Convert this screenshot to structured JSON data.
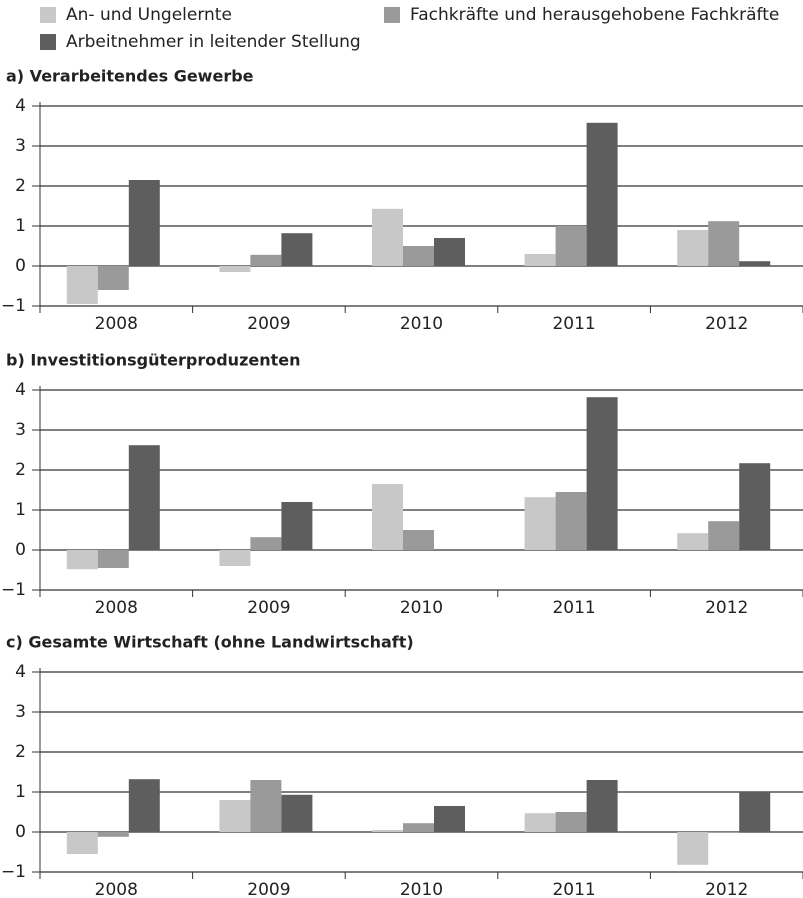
{
  "legend": {
    "series": [
      {
        "name": "An- und Ungelernte",
        "color": "#c8c8c8"
      },
      {
        "name": "Fachkräfte und herausgehobene Fachkräfte",
        "color": "#9a9a9a"
      },
      {
        "name": "Arbeitnehmer in leitender Stellung",
        "color": "#5e5e5e"
      }
    ]
  },
  "chart_data": [
    {
      "type": "bar",
      "title": "a) Verarbeitendes Gewerbe",
      "categories": [
        "2008",
        "2009",
        "2010",
        "2011",
        "2012"
      ],
      "series": [
        {
          "values": [
            -0.95,
            -0.15,
            1.43,
            0.3,
            0.9
          ]
        },
        {
          "values": [
            -0.6,
            0.28,
            0.5,
            1.0,
            1.12
          ]
        },
        {
          "values": [
            2.15,
            0.82,
            0.7,
            3.58,
            0.12
          ]
        }
      ],
      "ylim": [
        -1,
        4
      ],
      "yticks": [
        {
          "value": -1,
          "label": "−1"
        },
        0,
        1,
        2,
        3,
        4
      ],
      "grid": true
    },
    {
      "type": "bar",
      "title": "b) Investitionsgüterproduzenten",
      "categories": [
        "2008",
        "2009",
        "2010",
        "2011",
        "2012"
      ],
      "series": [
        {
          "values": [
            -0.48,
            -0.4,
            1.65,
            1.32,
            0.42
          ]
        },
        {
          "values": [
            -0.45,
            0.32,
            0.5,
            1.45,
            0.72
          ]
        },
        {
          "values": [
            2.62,
            1.2,
            0,
            3.82,
            2.17
          ]
        }
      ],
      "ylim": [
        -1,
        4
      ],
      "yticks": [
        {
          "value": -1,
          "label": "−1"
        },
        0,
        1,
        2,
        3,
        4
      ],
      "grid": true
    },
    {
      "type": "bar",
      "title": "c) Gesamte Wirtschaft (ohne Landwirtschaft)",
      "categories": [
        "2008",
        "2009",
        "2010",
        "2011",
        "2012"
      ],
      "series": [
        {
          "values": [
            -0.55,
            0.8,
            0.05,
            0.47,
            -0.82
          ]
        },
        {
          "values": [
            -0.12,
            1.3,
            0.22,
            0.5,
            -0.02
          ]
        },
        {
          "values": [
            1.32,
            0.93,
            0.65,
            1.3,
            1.0
          ]
        }
      ],
      "ylim": [
        -1,
        4
      ],
      "yticks": [
        {
          "value": -1,
          "label": "−1"
        },
        0,
        1,
        2,
        3,
        4
      ],
      "grid": true
    }
  ]
}
